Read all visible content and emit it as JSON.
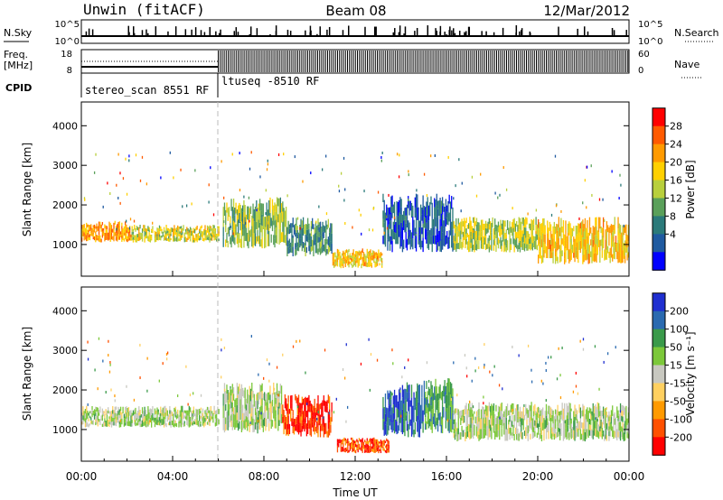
{
  "header": {
    "station": "Unwin (fitACF)",
    "beam": "Beam 08",
    "date": "12/Mar/2012"
  },
  "summary_labels": {
    "nsky": "N.Sky",
    "freq_line1": "Freq.",
    "freq_line2": "[MHz]",
    "cpid": "CPID",
    "nsearch": "N.Search",
    "nave": "Nave",
    "nsky_ticks": [
      "10^5",
      "10^0"
    ],
    "nsearch_ticks": [
      "10^5",
      "10^0"
    ],
    "freq_ticks": [
      "18",
      "8"
    ],
    "nave_ticks": [
      "60",
      "0"
    ]
  },
  "cpid_segments": [
    {
      "label": "stereo_scan 8551 RF",
      "start_hour": 0,
      "end_hour": 6
    },
    {
      "label": "ltuseq -8510 RF",
      "start_hour": 6,
      "end_hour": 24
    }
  ],
  "chart_data": [
    {
      "type": "heatmap",
      "title": "Power",
      "ylabel": "Slant Range [km]",
      "colorbar_label": "Power [dB]",
      "colorbar_ticks": [
        "28",
        "24",
        "20",
        "16",
        "12",
        "8",
        "4"
      ],
      "colorbar_colors": [
        "#ff0000",
        "#ff5a00",
        "#ff9a00",
        "#ffd000",
        "#b8cf3c",
        "#5aa05a",
        "#2b7a7a",
        "#1f5aa0",
        "#0000ff"
      ],
      "ylim": [
        200,
        4600
      ],
      "yticks": [
        1000,
        2000,
        3000,
        4000
      ],
      "xlim": [
        0,
        24
      ],
      "regions": [
        {
          "start_hour": 0.0,
          "end_hour": 2.2,
          "range_min": 1050,
          "range_max": 1600,
          "level": 0.25
        },
        {
          "start_hour": 2.2,
          "end_hour": 6.0,
          "range_min": 1050,
          "range_max": 1500,
          "level": 0.45
        },
        {
          "start_hour": 6.2,
          "end_hour": 9.0,
          "range_min": 900,
          "range_max": 2200,
          "level": 0.55
        },
        {
          "start_hour": 9.0,
          "end_hour": 11.0,
          "range_min": 700,
          "range_max": 1700,
          "level": 0.7
        },
        {
          "start_hour": 11.0,
          "end_hour": 13.2,
          "range_min": 400,
          "range_max": 900,
          "level": 0.35
        },
        {
          "start_hour": 13.2,
          "end_hour": 16.3,
          "range_min": 800,
          "range_max": 2300,
          "level": 0.85
        },
        {
          "start_hour": 16.3,
          "end_hour": 20.0,
          "range_min": 800,
          "range_max": 1700,
          "level": 0.5
        },
        {
          "start_hour": 20.0,
          "end_hour": 24.0,
          "range_min": 500,
          "range_max": 1700,
          "level": 0.35
        }
      ]
    },
    {
      "type": "heatmap",
      "title": "Velocity",
      "ylabel": "Slant Range [km]",
      "colorbar_label": "Velocity [m s⁻¹]",
      "colorbar_ticks": [
        "200",
        "100",
        "50",
        "15",
        "-15",
        "-50",
        "-100",
        "-200"
      ],
      "colorbar_colors": [
        "#1f2fd0",
        "#2a6ab0",
        "#3a9a4a",
        "#7cc83a",
        "#c8c8c0",
        "#ffd060",
        "#ff9a00",
        "#ff5000",
        "#ff0000"
      ],
      "ylim": [
        200,
        4600
      ],
      "yticks": [
        1000,
        2000,
        3000,
        4000
      ],
      "xlim": [
        0,
        24
      ],
      "regions": [
        {
          "start_hour": 0.0,
          "end_hour": 6.0,
          "range_min": 1050,
          "range_max": 1600,
          "level": 0.45
        },
        {
          "start_hour": 6.2,
          "end_hour": 8.8,
          "range_min": 900,
          "range_max": 2200,
          "level": 0.45
        },
        {
          "start_hour": 8.8,
          "end_hour": 11.0,
          "range_min": 800,
          "range_max": 1900,
          "level": 0.95
        },
        {
          "start_hour": 11.2,
          "end_hour": 13.5,
          "range_min": 400,
          "range_max": 800,
          "level": 0.9
        },
        {
          "start_hour": 13.2,
          "end_hour": 15.0,
          "range_min": 800,
          "range_max": 2200,
          "level": 0.1
        },
        {
          "start_hour": 15.0,
          "end_hour": 16.3,
          "range_min": 900,
          "range_max": 2300,
          "level": 0.25
        },
        {
          "start_hour": 16.3,
          "end_hour": 24.0,
          "range_min": 700,
          "range_max": 1700,
          "level": 0.45
        }
      ]
    }
  ],
  "x_axis": {
    "label": "Time UT",
    "ticks": [
      "00:00",
      "04:00",
      "08:00",
      "12:00",
      "16:00",
      "20:00",
      "00:00"
    ]
  }
}
